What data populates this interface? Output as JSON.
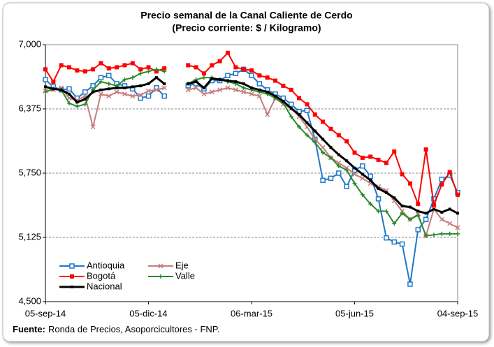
{
  "chart_data": {
    "type": "line",
    "title": "Precio semanal de la Canal Caliente de Cerdo",
    "subtitle": "(Precio corriente: $ / Kilogramo)",
    "categories": [
      "05-sep-14",
      null,
      null,
      null,
      null,
      null,
      null,
      null,
      null,
      null,
      null,
      null,
      null,
      "05-dic-14",
      null,
      null,
      null,
      null,
      null,
      null,
      null,
      null,
      null,
      null,
      null,
      null,
      "06-mar-15",
      null,
      null,
      null,
      null,
      null,
      null,
      null,
      null,
      null,
      null,
      null,
      null,
      "05-jun-15",
      null,
      null,
      null,
      null,
      null,
      null,
      null,
      null,
      null,
      null,
      null,
      null,
      "04-sep-15"
    ],
    "ylim": [
      4500,
      7000
    ],
    "yticks": [
      {
        "value": 4500,
        "label": "4,500"
      },
      {
        "value": 5125,
        "label": "5,125"
      },
      {
        "value": 5750,
        "label": "5,750"
      },
      {
        "value": 6375,
        "label": "6,375"
      },
      {
        "value": 7000,
        "label": "7,000"
      }
    ],
    "grid": true,
    "legend": "lower left",
    "series": [
      {
        "name": "Antioquia",
        "color": "#1f77c8",
        "marker": "square-open",
        "values": [
          6660,
          6590,
          6560,
          6570,
          6480,
          6540,
          6600,
          6680,
          6700,
          6620,
          6600,
          6570,
          6480,
          6500,
          6580,
          6500,
          null,
          null,
          6600,
          6620,
          6570,
          6650,
          6650,
          6700,
          6720,
          6760,
          6700,
          6620,
          6560,
          6520,
          6480,
          6420,
          6350,
          6360,
          6080,
          5680,
          5700,
          5750,
          5620,
          5780,
          5820,
          5720,
          5500,
          5120,
          5080,
          5060,
          4670,
          5200,
          5300,
          5500,
          5690,
          5730,
          5560
        ]
      },
      {
        "name": "Eje",
        "color": "#c87c7c",
        "marker": "x",
        "values": [
          6550,
          6560,
          6580,
          6480,
          6460,
          6500,
          6200,
          6520,
          6500,
          6540,
          6520,
          6500,
          6510,
          6550,
          6560,
          6580,
          null,
          null,
          6560,
          6580,
          6520,
          6540,
          6560,
          6580,
          6560,
          6540,
          6520,
          6500,
          6320,
          6480,
          6420,
          6380,
          6300,
          6200,
          6080,
          6000,
          5900,
          5850,
          5800,
          5740,
          5700,
          5650,
          5620,
          5580,
          5480,
          5380,
          5300,
          5350,
          5140,
          5400,
          5300,
          5260,
          5220
        ]
      },
      {
        "name": "Bogotá",
        "color": "#ff0000",
        "marker": "square",
        "values": [
          6760,
          6640,
          6800,
          6780,
          6750,
          6740,
          6760,
          6820,
          6770,
          6780,
          6800,
          6820,
          6760,
          6780,
          6740,
          6770,
          null,
          null,
          6800,
          6780,
          6720,
          6800,
          6840,
          6920,
          6780,
          6760,
          6750,
          6700,
          6680,
          6650,
          6600,
          6560,
          6480,
          6420,
          6320,
          6250,
          6180,
          6120,
          6060,
          5950,
          5900,
          5910,
          5880,
          5850,
          5960,
          5740,
          5650,
          5450,
          5980,
          5440,
          5640,
          5760,
          5540
        ]
      },
      {
        "name": "Valle",
        "color": "#2a8a2a",
        "marker": "plus",
        "values": [
          6540,
          6570,
          6560,
          6430,
          6400,
          6420,
          6560,
          6640,
          6620,
          6600,
          6660,
          6680,
          6720,
          6740,
          6760,
          6740,
          null,
          null,
          6620,
          6660,
          6680,
          6680,
          6660,
          6640,
          6620,
          6580,
          6560,
          6540,
          6520,
          6480,
          6430,
          6300,
          6200,
          6120,
          6050,
          5950,
          5900,
          5820,
          5780,
          5650,
          5540,
          5450,
          5380,
          5380,
          5260,
          5360,
          5300,
          5340,
          5140,
          5150,
          5160,
          5160,
          5160
        ]
      },
      {
        "name": "Nacional",
        "color": "#000000",
        "marker": "square-small",
        "values": [
          6590,
          6570,
          6560,
          6520,
          6440,
          6470,
          6540,
          6560,
          6570,
          6580,
          6580,
          6590,
          6600,
          6620,
          6680,
          6620,
          null,
          null,
          6620,
          6640,
          6580,
          6670,
          6660,
          6650,
          6640,
          6620,
          6580,
          6560,
          6540,
          6500,
          6450,
          6380,
          6320,
          6240,
          6160,
          6080,
          6000,
          5930,
          5870,
          5800,
          5740,
          5680,
          5600,
          5560,
          5510,
          5430,
          5420,
          5380,
          5360,
          5400,
          5370,
          5400,
          5360
        ]
      }
    ]
  },
  "source": {
    "label": "Fuente:",
    "text": "Ronda de Precios, Asoporcicultores  - FNP."
  }
}
